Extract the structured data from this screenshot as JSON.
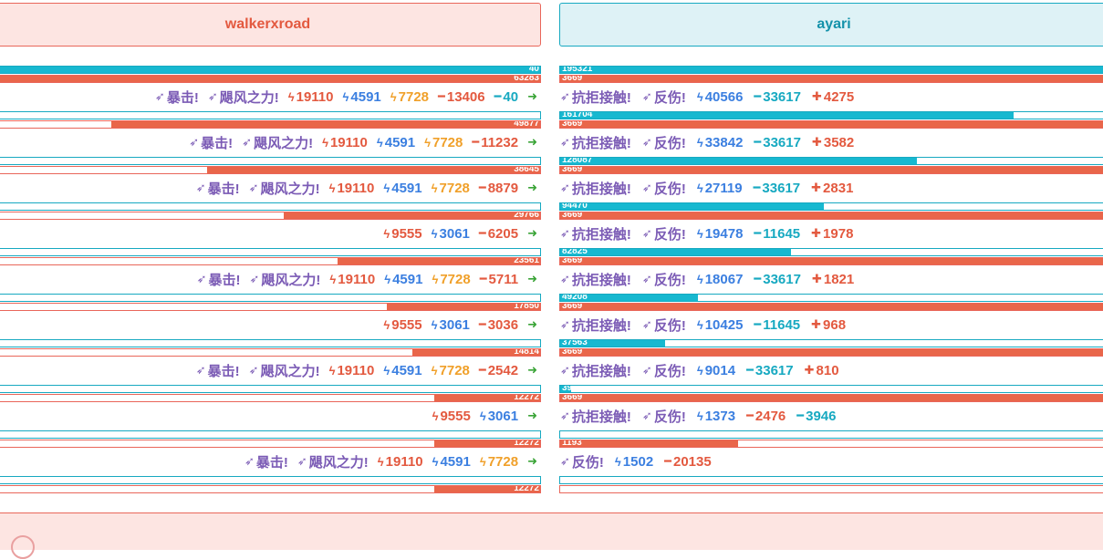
{
  "headers": {
    "left": "walkerxroad",
    "right": "ayari"
  },
  "labels": {
    "crit": "暴击!",
    "gale": "飓风之力!",
    "resist": "抗拒接触!",
    "reflect": "反伤!"
  },
  "colors": {
    "left_accent": "#e9665a",
    "right_accent": "#17a9c1",
    "attack": "#e3593f",
    "lightning": "#3b7fe0",
    "bonus": "#f0a02a",
    "arrow": "#3aa437",
    "skill": "#7b5bb5"
  },
  "icons": {
    "skill": "arrow-skill-icon",
    "lightning": "lightning-icon",
    "minus": "minus-icon",
    "plus": "plus-icon",
    "next": "arrow-right-icon"
  },
  "rounds": [
    {
      "left_bars": {
        "blue_label": "40",
        "blue_fraction": 1.0,
        "red_label": "63283",
        "red_fraction": 1.0
      },
      "right_bars": {
        "blue_label": "195321",
        "blue_fraction": 1.0,
        "red_label": "3669",
        "red_fraction": 1.0
      },
      "left_line": {
        "crit": true,
        "gale": true,
        "atk": "19110",
        "lightning": "4591",
        "bonus": "7728",
        "dmg": "13406",
        "teal": "40",
        "arrow": true
      },
      "right_line": {
        "resist": true,
        "reflect": true,
        "lightning": "40566",
        "teal": "33617",
        "plus": "4275"
      }
    },
    {
      "left_bars": {
        "blue_label": "",
        "blue_fraction": 0.0,
        "red_label": "49877",
        "red_fraction": 0.788
      },
      "right_bars": {
        "blue_label": "161704",
        "blue_fraction": 0.828,
        "red_label": "3669",
        "red_fraction": 1.0
      },
      "left_line": {
        "crit": true,
        "gale": true,
        "atk": "19110",
        "lightning": "4591",
        "bonus": "7728",
        "dmg": "11232",
        "arrow": true
      },
      "right_line": {
        "resist": true,
        "reflect": true,
        "lightning": "33842",
        "teal": "33617",
        "plus": "3582"
      }
    },
    {
      "left_bars": {
        "blue_label": "",
        "blue_fraction": 0.0,
        "red_label": "38645",
        "red_fraction": 0.611
      },
      "right_bars": {
        "blue_label": "128087",
        "blue_fraction": 0.652,
        "red_label": "3669",
        "red_fraction": 1.0
      },
      "left_line": {
        "crit": true,
        "gale": true,
        "atk": "19110",
        "lightning": "4591",
        "bonus": "7728",
        "dmg": "8879",
        "arrow": true
      },
      "right_line": {
        "resist": true,
        "reflect": true,
        "lightning": "27119",
        "teal": "33617",
        "plus": "2831"
      }
    },
    {
      "left_bars": {
        "blue_label": "",
        "blue_fraction": 0.0,
        "red_label": "29766",
        "red_fraction": 0.47
      },
      "right_bars": {
        "blue_label": "94470",
        "blue_fraction": 0.481,
        "red_label": "3669",
        "red_fraction": 1.0
      },
      "left_line": {
        "atk": "9555",
        "lightning": "3061",
        "dmg": "6205",
        "arrow": true
      },
      "right_line": {
        "resist": true,
        "reflect": true,
        "lightning": "19478",
        "teal": "11645",
        "plus": "1978"
      }
    },
    {
      "left_bars": {
        "blue_label": "",
        "blue_fraction": 0.0,
        "red_label": "23561",
        "red_fraction": 0.372
      },
      "right_bars": {
        "blue_label": "82825",
        "blue_fraction": 0.422,
        "red_label": "3669",
        "red_fraction": 1.0
      },
      "left_line": {
        "crit": true,
        "gale": true,
        "atk": "19110",
        "lightning": "4591",
        "bonus": "7728",
        "dmg": "5711",
        "arrow": true
      },
      "right_line": {
        "resist": true,
        "reflect": true,
        "lightning": "18067",
        "teal": "33617",
        "plus": "1821"
      }
    },
    {
      "left_bars": {
        "blue_label": "",
        "blue_fraction": 0.0,
        "red_label": "17850",
        "red_fraction": 0.282
      },
      "right_bars": {
        "blue_label": "49208",
        "blue_fraction": 0.252,
        "red_label": "3669",
        "red_fraction": 1.0
      },
      "left_line": {
        "atk": "9555",
        "lightning": "3061",
        "dmg": "3036",
        "arrow": true
      },
      "right_line": {
        "resist": true,
        "reflect": true,
        "lightning": "10425",
        "teal": "11645",
        "plus": "968"
      }
    },
    {
      "left_bars": {
        "blue_label": "",
        "blue_fraction": 0.0,
        "red_label": "14814",
        "red_fraction": 0.234
      },
      "right_bars": {
        "blue_label": "37563",
        "blue_fraction": 0.192,
        "red_label": "3669",
        "red_fraction": 1.0
      },
      "left_line": {
        "crit": true,
        "gale": true,
        "atk": "19110",
        "lightning": "4591",
        "bonus": "7728",
        "dmg": "2542",
        "arrow": true
      },
      "right_line": {
        "resist": true,
        "reflect": true,
        "lightning": "9014",
        "teal": "33617",
        "plus": "810"
      }
    },
    {
      "left_bars": {
        "blue_label": "",
        "blue_fraction": 0.0,
        "red_label": "12272",
        "red_fraction": 0.194
      },
      "right_bars": {
        "blue_label": "3946",
        "blue_fraction": 0.02,
        "red_label": "3669",
        "red_fraction": 1.0
      },
      "left_line": {
        "atk": "9555",
        "lightning": "3061",
        "arrow": true
      },
      "right_line": {
        "resist": true,
        "reflect": true,
        "lightning": "1373",
        "minus_red": "2476",
        "teal": "3946"
      }
    },
    {
      "left_bars": {
        "blue_label": "",
        "blue_fraction": 0.0,
        "red_label": "12272",
        "red_fraction": 0.194
      },
      "right_bars": {
        "blue_label": "",
        "blue_fraction": 0.0,
        "red_label": "1193",
        "red_fraction": 0.325
      },
      "left_line": {
        "crit": true,
        "gale": true,
        "atk": "19110",
        "lightning": "4591",
        "bonus": "7728",
        "arrow": true
      },
      "right_line": {
        "reflect": true,
        "lightning": "1502",
        "minus_red": "20135"
      }
    },
    {
      "left_bars": {
        "blue_label": "",
        "blue_fraction": 0.0,
        "red_label": "12272",
        "red_fraction": 0.194
      },
      "right_bars": {
        "blue_label": "",
        "blue_fraction": 0.0,
        "red_label": "0",
        "red_fraction": 0.0
      }
    }
  ]
}
